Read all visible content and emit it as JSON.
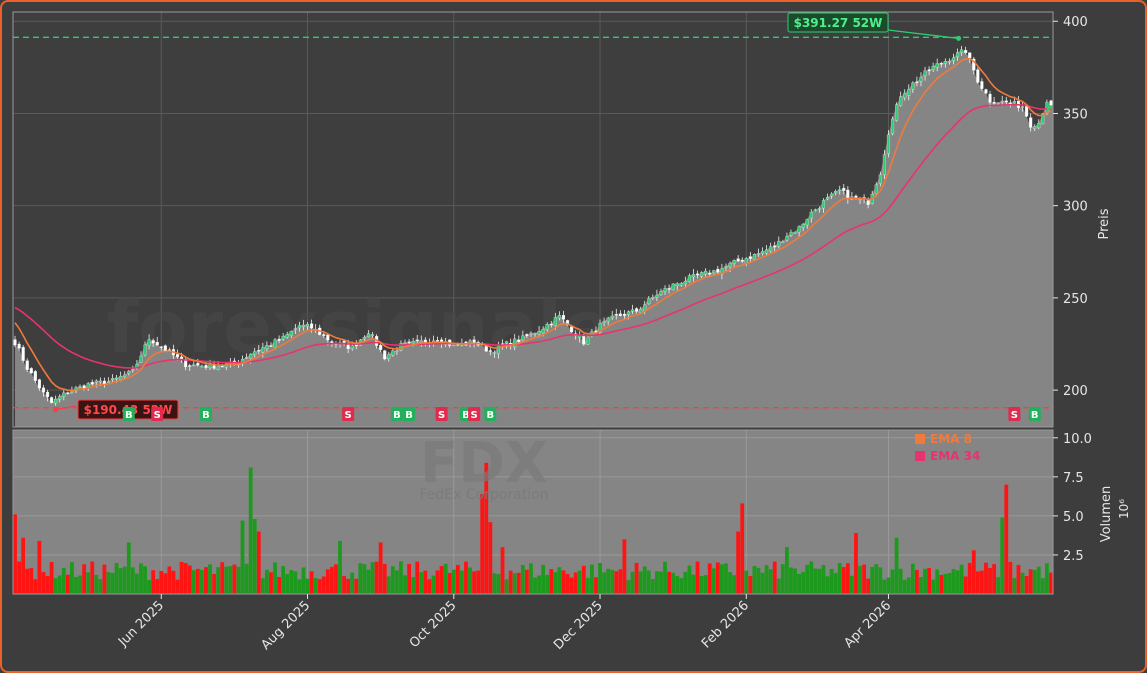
{
  "chart_data": {
    "type": "candlestick",
    "ticker": "FDX",
    "company": "FedEx Corporation",
    "watermark": "forexsignale.trade",
    "price_axis": {
      "label": "Preis",
      "ylim": [
        180,
        405
      ],
      "ticks": [
        "200",
        "250",
        "300",
        "350",
        "400"
      ]
    },
    "volume_axis": {
      "label": "Volumen",
      "unit": "10⁶",
      "ylim": [
        0,
        10.5
      ],
      "ticks": [
        "2.5",
        "5.0",
        "7.5",
        "10.0"
      ]
    },
    "x_ticks": [
      "Jun 2025",
      "Aug 2025",
      "Oct 2025",
      "Dec 2025",
      "Feb 2026",
      "Apr 2026"
    ],
    "high_52w": {
      "label": "$391.27 52W",
      "value": 391.27,
      "color": "#2ecc71"
    },
    "low_52w": {
      "label": "$190.43 52W",
      "value": 190.43,
      "color": "#ff3b3b"
    },
    "last_price": 353.5,
    "legend": [
      {
        "name": "EMA 8",
        "color": "#f07a3c"
      },
      {
        "name": "EMA 34",
        "color": "#e8336e"
      }
    ],
    "close_anchors": [
      [
        0,
        226
      ],
      [
        3,
        212
      ],
      [
        7,
        198
      ],
      [
        9,
        193
      ],
      [
        13,
        199
      ],
      [
        18,
        203
      ],
      [
        24,
        205
      ],
      [
        29,
        210
      ],
      [
        33,
        228
      ],
      [
        37,
        222
      ],
      [
        42,
        214
      ],
      [
        48,
        213
      ],
      [
        54,
        214
      ],
      [
        58,
        220
      ],
      [
        62,
        224
      ],
      [
        66,
        228
      ],
      [
        70,
        235
      ],
      [
        73,
        234
      ],
      [
        78,
        226
      ],
      [
        83,
        223
      ],
      [
        87,
        232
      ],
      [
        91,
        218
      ],
      [
        95,
        224
      ],
      [
        100,
        226
      ],
      [
        104,
        228
      ],
      [
        108,
        224
      ],
      [
        113,
        226
      ],
      [
        117,
        221
      ],
      [
        121,
        225
      ],
      [
        125,
        228
      ],
      [
        130,
        234
      ],
      [
        134,
        240
      ],
      [
        137,
        233
      ],
      [
        140,
        226
      ],
      [
        144,
        235
      ],
      [
        148,
        240
      ],
      [
        153,
        243
      ],
      [
        158,
        252
      ],
      [
        163,
        258
      ],
      [
        168,
        262
      ],
      [
        173,
        265
      ],
      [
        178,
        270
      ],
      [
        183,
        274
      ],
      [
        187,
        278
      ],
      [
        190,
        284
      ],
      [
        193,
        288
      ],
      [
        196,
        296
      ],
      [
        199,
        302
      ],
      [
        203,
        308
      ],
      [
        206,
        304
      ],
      [
        210,
        302
      ],
      [
        213,
        318
      ],
      [
        215,
        340
      ],
      [
        218,
        360
      ],
      [
        222,
        368
      ],
      [
        226,
        375
      ],
      [
        231,
        381
      ],
      [
        234,
        384
      ],
      [
        237,
        368
      ],
      [
        240,
        357
      ],
      [
        244,
        356
      ],
      [
        248,
        354
      ],
      [
        250,
        344
      ],
      [
        252,
        345
      ],
      [
        254,
        357
      ],
      [
        255,
        353
      ]
    ],
    "signals": [
      {
        "bar": 28,
        "text": "B"
      },
      {
        "bar": 35,
        "text": "S"
      },
      {
        "bar": 47,
        "text": "B"
      },
      {
        "bar": 82,
        "text": "S"
      },
      {
        "bar": 94,
        "text": "B"
      },
      {
        "bar": 97,
        "text": "B"
      },
      {
        "bar": 105,
        "text": "S"
      },
      {
        "bar": 111,
        "text": "B"
      },
      {
        "bar": 113,
        "text": "S"
      },
      {
        "bar": 117,
        "text": "B"
      },
      {
        "bar": 246,
        "text": "S"
      },
      {
        "bar": 251,
        "text": "B"
      }
    ],
    "volume_spikes": [
      [
        0,
        5.1
      ],
      [
        2,
        3.6
      ],
      [
        6,
        3.4
      ],
      [
        28,
        3.3
      ],
      [
        56,
        4.7
      ],
      [
        58,
        8.1
      ],
      [
        59,
        4.8
      ],
      [
        60,
        4.0
      ],
      [
        80,
        3.4
      ],
      [
        90,
        3.3
      ],
      [
        115,
        6.4
      ],
      [
        116,
        8.4
      ],
      [
        117,
        4.6
      ],
      [
        120,
        3.0
      ],
      [
        150,
        3.5
      ],
      [
        178,
        4.0
      ],
      [
        179,
        5.8
      ],
      [
        190,
        3.0
      ],
      [
        207,
        3.9
      ],
      [
        217,
        3.6
      ],
      [
        236,
        2.8
      ],
      [
        243,
        4.9
      ],
      [
        244,
        7.0
      ]
    ]
  }
}
